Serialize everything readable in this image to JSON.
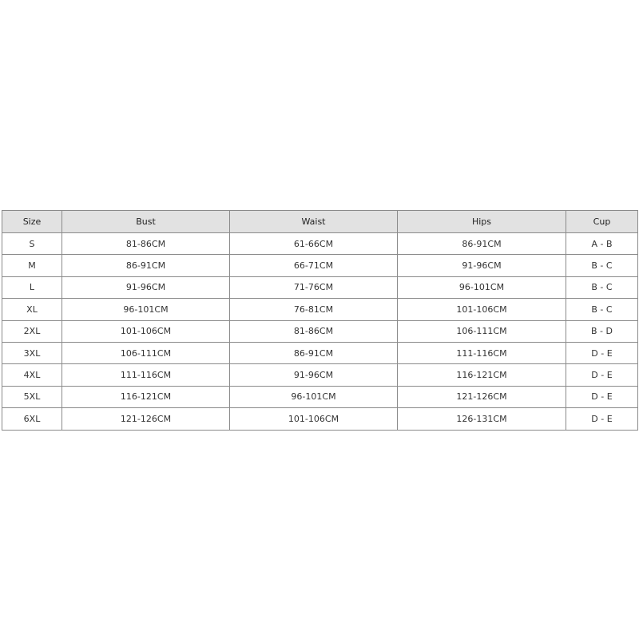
{
  "headers": [
    "Size",
    "Bust",
    "Waist",
    "Hips",
    "Cup"
  ],
  "rows": [
    [
      "S",
      "81-86CM",
      "61-66CM",
      "86-91CM",
      "A - B"
    ],
    [
      "M",
      "86-91CM",
      "66-71CM",
      "91-96CM",
      "B - C"
    ],
    [
      "L",
      "91-96CM",
      "71-76CM",
      "96-101CM",
      "B - C"
    ],
    [
      "XL",
      "96-101CM",
      "76-81CM",
      "101-106CM",
      "B - C"
    ],
    [
      "2XL",
      "101-106CM",
      "81-86CM",
      "106-111CM",
      "B - D"
    ],
    [
      "3XL",
      "106-111CM",
      "86-91CM",
      "111-116CM",
      "D - E"
    ],
    [
      "4XL",
      "111-116CM",
      "91-96CM",
      "116-121CM",
      "D - E"
    ],
    [
      "5XL",
      "116-121CM",
      "96-101CM",
      "121-126CM",
      "D - E"
    ],
    [
      "6XL",
      "121-126CM",
      "101-106CM",
      "126-131CM",
      "D - E"
    ]
  ]
}
